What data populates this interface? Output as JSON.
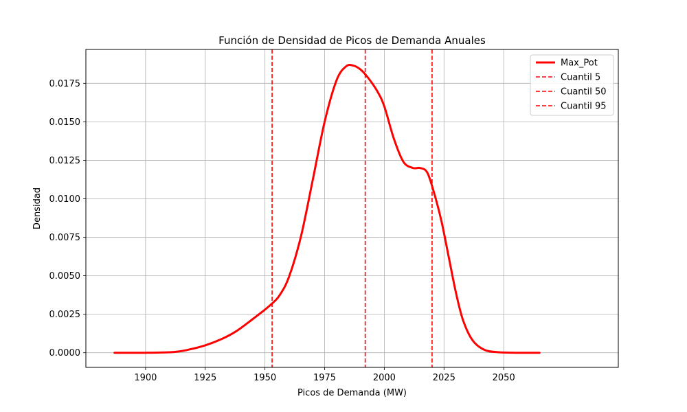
{
  "chart_data": {
    "type": "line",
    "title": "Función de Densidad de Picos de Demanda Anuales",
    "xlabel": "Picos de Demanda (MW)",
    "ylabel": "Densidad",
    "xlim": [
      1875,
      2098
    ],
    "ylim": [
      -0.00095,
      0.0197
    ],
    "xticks": [
      1900,
      1925,
      1950,
      1975,
      2000,
      2025,
      2050
    ],
    "yticks": [
      0.0,
      0.0025,
      0.005,
      0.0075,
      0.01,
      0.0125,
      0.015,
      0.0175
    ],
    "ytick_labels": [
      "0.0000",
      "0.0025",
      "0.0050",
      "0.0075",
      "0.0100",
      "0.0125",
      "0.0150",
      "0.0175"
    ],
    "grid": true,
    "legend_position": "top-right",
    "colors": {
      "series": "#ff0000"
    },
    "series": [
      {
        "name": "Max_Pot",
        "style": "solid",
        "x": [
          1887,
          1900,
          1912,
          1918,
          1925,
          1932,
          1938,
          1945,
          1950,
          1953,
          1956,
          1960,
          1965,
          1970,
          1975,
          1980,
          1984,
          1987,
          1990,
          1993,
          1997,
          2000,
          2004,
          2008,
          2012,
          2015,
          2018,
          2021,
          2024,
          2027,
          2030,
          2033,
          2037,
          2042,
          2048,
          2055,
          2065
        ],
        "y": [
          0.0,
          0.0,
          5e-05,
          0.0002,
          0.00048,
          0.0009,
          0.0014,
          0.0022,
          0.0028,
          0.0032,
          0.0037,
          0.0049,
          0.0075,
          0.0112,
          0.015,
          0.0177,
          0.0186,
          0.01865,
          0.0184,
          0.0179,
          0.017,
          0.016,
          0.0139,
          0.0124,
          0.012,
          0.012,
          0.0117,
          0.0103,
          0.0085,
          0.0062,
          0.0039,
          0.0021,
          0.0008,
          0.00018,
          3e-05,
          0.0,
          0.0
        ]
      },
      {
        "name": "Cuantil 5",
        "style": "dashed",
        "vline": 1953
      },
      {
        "name": "Cuantil 50",
        "style": "dashed",
        "vline": 1992
      },
      {
        "name": "Cuantil 95",
        "style": "dashed",
        "vline": 2020
      }
    ]
  }
}
